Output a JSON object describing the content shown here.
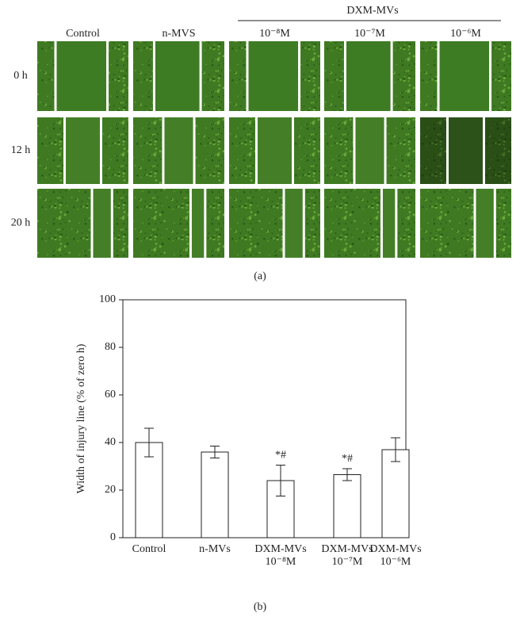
{
  "panel_a": {
    "group_header": "DXM-MVs",
    "columns": [
      "Control",
      "n-MVS",
      "10⁻⁸M",
      "10⁻⁷M",
      "10⁻⁶M"
    ],
    "rows": [
      "0 h",
      "12 h",
      "20 h"
    ],
    "caption": "(a)"
  },
  "chart_data": {
    "type": "bar",
    "y_label": "Width of injury line (% of zero h)",
    "categories": [
      "Control",
      "n-MVs",
      "DXM-MVs\n10⁻⁸M",
      "DXM-MVs\n10⁻⁷M",
      "DXM-MVs\n10⁻⁶M"
    ],
    "values": [
      40,
      36,
      24,
      26.5,
      37
    ],
    "errors": [
      6,
      2.5,
      6.5,
      2.5,
      5
    ],
    "annotations": [
      null,
      null,
      "*#",
      "*#",
      null
    ],
    "color": "#ffffff",
    "ylim": [
      0,
      100
    ],
    "yticks": [
      0,
      20,
      40,
      60,
      80,
      100
    ],
    "caption": "(b)"
  }
}
